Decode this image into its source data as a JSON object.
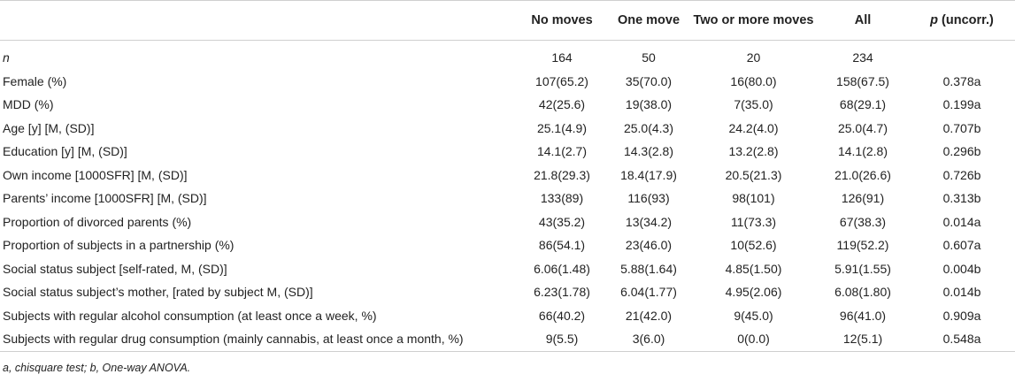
{
  "table": {
    "headers": [
      "",
      "No moves",
      "One move",
      "Two or more moves",
      "All"
    ],
    "p_header": {
      "italic": "p",
      "rest": " (uncorr.)"
    },
    "rows": [
      {
        "label": "n",
        "italic": true,
        "cells": [
          "164",
          "50",
          "20",
          "234",
          ""
        ]
      },
      {
        "label": "Female (%)",
        "cells": [
          "107(65.2)",
          "35(70.0)",
          "16(80.0)",
          "158(67.5)",
          "0.378a"
        ]
      },
      {
        "label": "MDD (%)",
        "cells": [
          "42(25.6)",
          "19(38.0)",
          "7(35.0)",
          "68(29.1)",
          "0.199a"
        ]
      },
      {
        "label": "Age [y] [M, (SD)]",
        "cells": [
          "25.1(4.9)",
          "25.0(4.3)",
          "24.2(4.0)",
          "25.0(4.7)",
          "0.707b"
        ]
      },
      {
        "label": "Education [y] [M, (SD)]",
        "cells": [
          "14.1(2.7)",
          "14.3(2.8)",
          "13.2(2.8)",
          "14.1(2.8)",
          "0.296b"
        ]
      },
      {
        "label": "Own income [1000SFR] [M, (SD)]",
        "cells": [
          "21.8(29.3)",
          "18.4(17.9)",
          "20.5(21.3)",
          "21.0(26.6)",
          "0.726b"
        ]
      },
      {
        "label": "Parents’ income [1000SFR] [M, (SD)]",
        "cells": [
          "133(89)",
          "116(93)",
          "98(101)",
          "126(91)",
          "0.313b"
        ]
      },
      {
        "label": "Proportion of divorced parents (%)",
        "cells": [
          "43(35.2)",
          "13(34.2)",
          "11(73.3)",
          "67(38.3)",
          "0.014a"
        ]
      },
      {
        "label": "Proportion of subjects in a partnership (%)",
        "cells": [
          "86(54.1)",
          "23(46.0)",
          "10(52.6)",
          "119(52.2)",
          "0.607a"
        ]
      },
      {
        "label": "Social status subject [self-rated, M, (SD)]",
        "cells": [
          "6.06(1.48)",
          "5.88(1.64)",
          "4.85(1.50)",
          "5.91(1.55)",
          "0.004b"
        ]
      },
      {
        "label": "Social status subject’s mother, [rated by subject M, (SD)]",
        "cells": [
          "6.23(1.78)",
          "6.04(1.77)",
          "4.95(2.06)",
          "6.08(1.80)",
          "0.014b"
        ]
      },
      {
        "label": "Subjects with regular alcohol consumption (at least once a week, %)",
        "cells": [
          "66(40.2)",
          "21(42.0)",
          "9(45.0)",
          "96(41.0)",
          "0.909a"
        ]
      },
      {
        "label": "Subjects with regular drug consumption (mainly cannabis, at least once a month, %)",
        "cells": [
          "9(5.5)",
          "3(6.0)",
          "0(0.0)",
          "12(5.1)",
          "0.548a"
        ]
      }
    ]
  },
  "footnote": "a, chisquare test; b, One-way ANOVA."
}
